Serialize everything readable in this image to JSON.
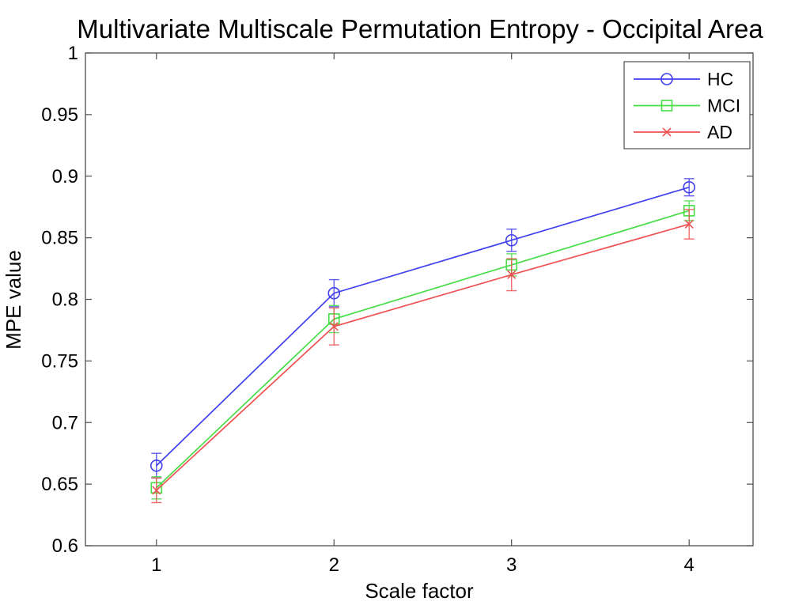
{
  "figure": {
    "background": "#ffffff",
    "axis_color": "#4d4d4d",
    "text_color": "#000000"
  },
  "chart_data": {
    "type": "line",
    "title": "Multivariate Multiscale Permutation Entropy - Occipital Area",
    "xlabel": "Scale factor",
    "ylabel": "MPE value",
    "x": [
      1,
      2,
      3,
      4
    ],
    "series": [
      {
        "name": "HC",
        "color": "#4040ee",
        "marker": "circle",
        "values": [
          0.665,
          0.805,
          0.848,
          0.891
        ],
        "errors": [
          0.01,
          0.011,
          0.009,
          0.007
        ]
      },
      {
        "name": "MCI",
        "color": "#47dd47",
        "marker": "square",
        "values": [
          0.647,
          0.784,
          0.828,
          0.872
        ],
        "errors": [
          0.009,
          0.011,
          0.009,
          0.008
        ]
      },
      {
        "name": "AD",
        "color": "#ee5252",
        "marker": "x",
        "values": [
          0.645,
          0.778,
          0.82,
          0.861
        ],
        "errors": [
          0.01,
          0.015,
          0.013,
          0.012
        ]
      }
    ],
    "xlim": [
      0.6,
      4.36
    ],
    "ylim": [
      0.6,
      1.0
    ],
    "xticks": [
      1,
      2,
      3,
      4
    ],
    "xtick_labels": [
      "1",
      "2",
      "3",
      "4"
    ],
    "yticks": [
      1,
      0.95,
      0.9,
      0.85,
      0.8,
      0.75,
      0.7,
      0.65,
      0.6
    ],
    "ytick_labels": [
      "1",
      "0.95",
      "0.9",
      "0.85",
      "0.8",
      "0.75",
      "0.7",
      "0.65",
      "0.6"
    ],
    "grid": false,
    "legend_position": "top-right",
    "legend_entries": [
      "HC",
      "MCI",
      "AD"
    ]
  }
}
